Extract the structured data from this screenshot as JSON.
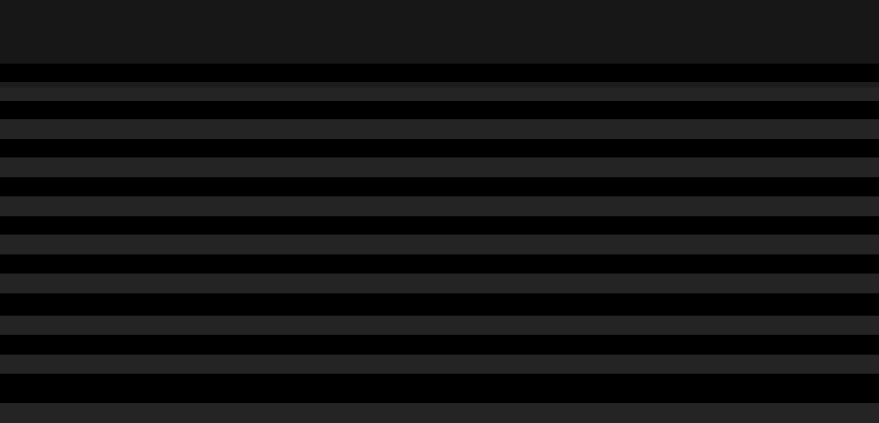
{
  "colors": {
    "header_background": "#171717",
    "row_dark": "#000000",
    "row_light": "#242424"
  }
}
